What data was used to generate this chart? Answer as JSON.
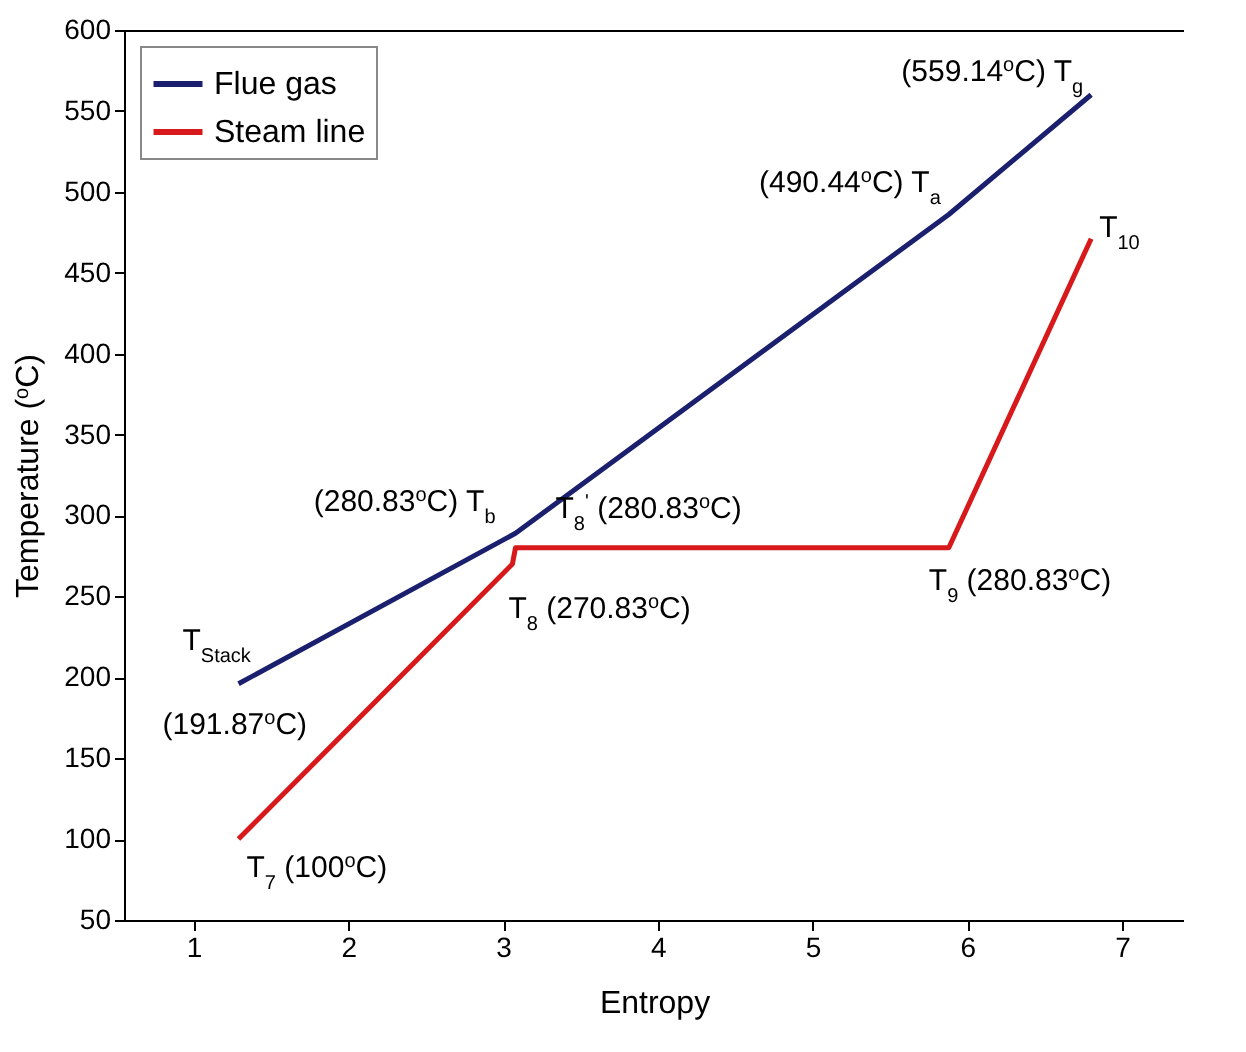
{
  "chart_data": {
    "type": "line",
    "xlabel": "Entropy",
    "ylabel": "Temperature ($^{o}$C)",
    "xlim": [
      0.55,
      7.4
    ],
    "xticks": [
      1,
      2,
      3,
      4,
      5,
      6,
      7
    ],
    "ylim": [
      50,
      600
    ],
    "yticks": [
      50,
      100,
      150,
      200,
      250,
      300,
      350,
      400,
      450,
      500,
      550,
      600
    ],
    "grid": false,
    "legend": "top left",
    "marker": "none",
    "line_style": "solid",
    "series": [
      {
        "name": "Flue gas",
        "color": "#1a1f6e",
        "x": [
          1.29,
          3.08,
          5.88,
          6.8
        ],
        "values": [
          196,
          289,
          486,
          560
        ]
      },
      {
        "name": "Steam line",
        "color": "#d7191c",
        "x": [
          1.29,
          3.06,
          3.08,
          5.88,
          6.8
        ],
        "values": [
          100,
          270,
          280,
          280,
          471
        ]
      }
    ],
    "annotations": [
      {
        "text": "(559.14$^{o}$C) T$_{g}$",
        "x": 6.8,
        "y": 560
      },
      {
        "text": "(490.44$^{o}$C) T$_{a}$",
        "x": 5.88,
        "y": 486
      },
      {
        "text": "(280.83$^{o}$C) T$_{b}$",
        "x": 3.08,
        "y": 289
      },
      {
        "text": "T$_{8}$$^{'}$ (280.83$^{o}$C)",
        "x": 3.08,
        "y": 280
      },
      {
        "text": "T$_{Stack}$",
        "x": 1.29,
        "y": 196
      },
      {
        "text": "(191.87$^{o}$C)",
        "x": 1.29,
        "y": 196
      },
      {
        "text": "T$_{8}$ (270.83$^{o}$C)",
        "x": 3.06,
        "y": 270
      },
      {
        "text": "T$_{9}$ (280.83$^{o}$C)",
        "x": 5.88,
        "y": 280
      },
      {
        "text": "T$_{10}$",
        "x": 6.8,
        "y": 471
      },
      {
        "text": "T$_{7}$ (100$^{o}$C)",
        "x": 1.29,
        "y": 100
      }
    ]
  }
}
